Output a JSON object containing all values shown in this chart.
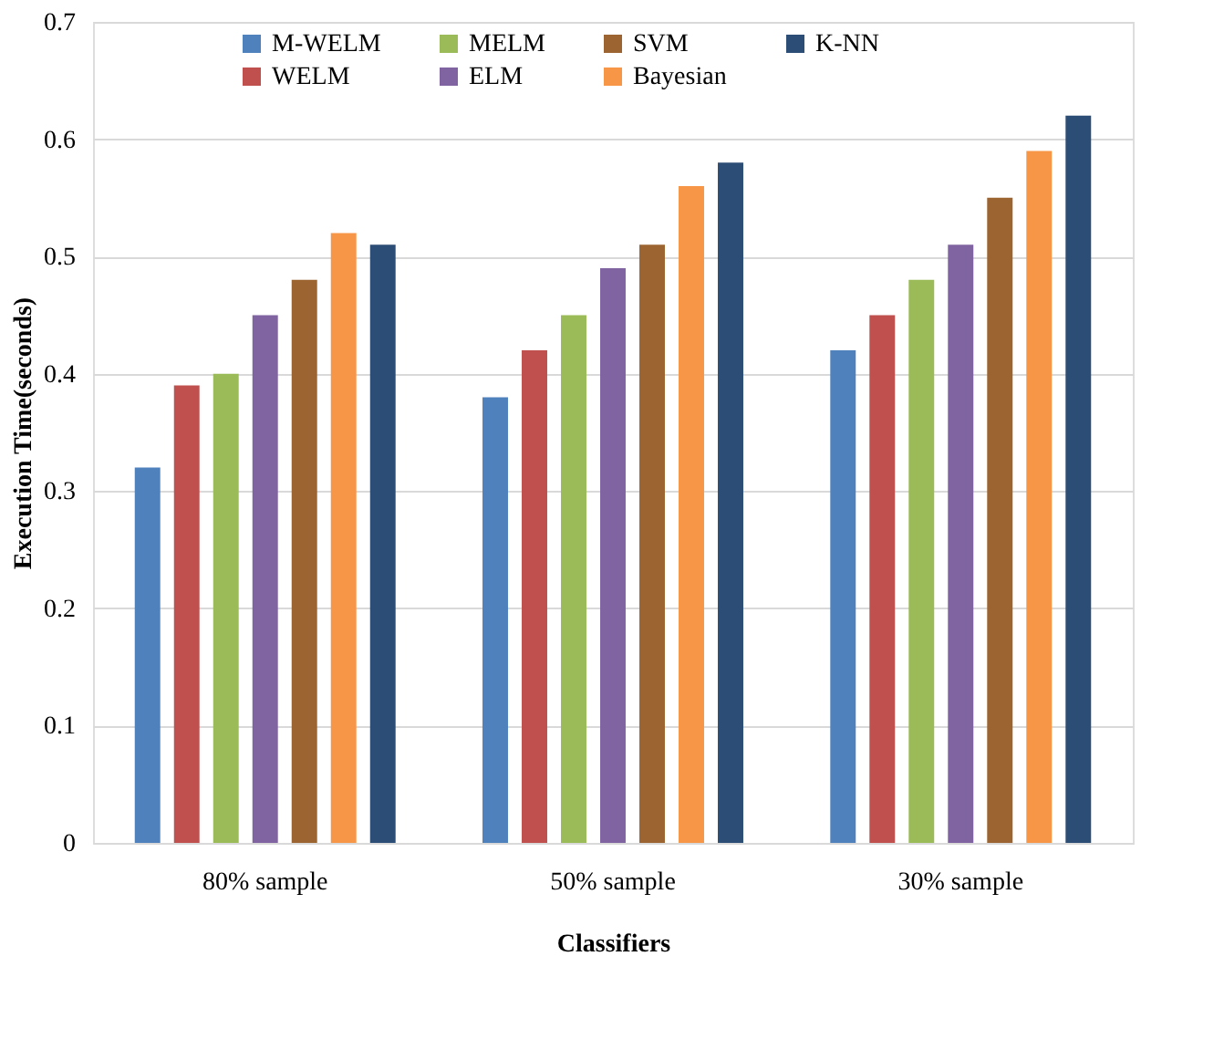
{
  "chart_data": {
    "type": "bar",
    "xlabel": "Classifiers",
    "ylabel": "Execution Time(seconds)",
    "categories": [
      "80% sample",
      "50% sample",
      "30% sample"
    ],
    "series": [
      {
        "name": "M-WELM",
        "color": "#4f81bd",
        "values": [
          0.32,
          0.38,
          0.42
        ]
      },
      {
        "name": "WELM",
        "color": "#c0504d",
        "values": [
          0.39,
          0.42,
          0.45
        ]
      },
      {
        "name": "MELM",
        "color": "#9bbb59",
        "values": [
          0.4,
          0.45,
          0.48
        ]
      },
      {
        "name": "ELM",
        "color": "#8064a2",
        "values": [
          0.45,
          0.49,
          0.51
        ]
      },
      {
        "name": "SVM",
        "color": "#9c6430",
        "values": [
          0.48,
          0.51,
          0.55
        ]
      },
      {
        "name": "Bayesian",
        "color": "#f79646",
        "values": [
          0.52,
          0.56,
          0.59
        ]
      },
      {
        "name": "K-NN",
        "color": "#2c4d75",
        "values": [
          0.51,
          0.58,
          0.62
        ]
      }
    ],
    "ylim": [
      0,
      0.7
    ],
    "yticks": [
      0,
      0.1,
      0.2,
      0.3,
      0.4,
      0.5,
      0.6,
      0.7
    ],
    "grid": "y",
    "legend": "top"
  }
}
